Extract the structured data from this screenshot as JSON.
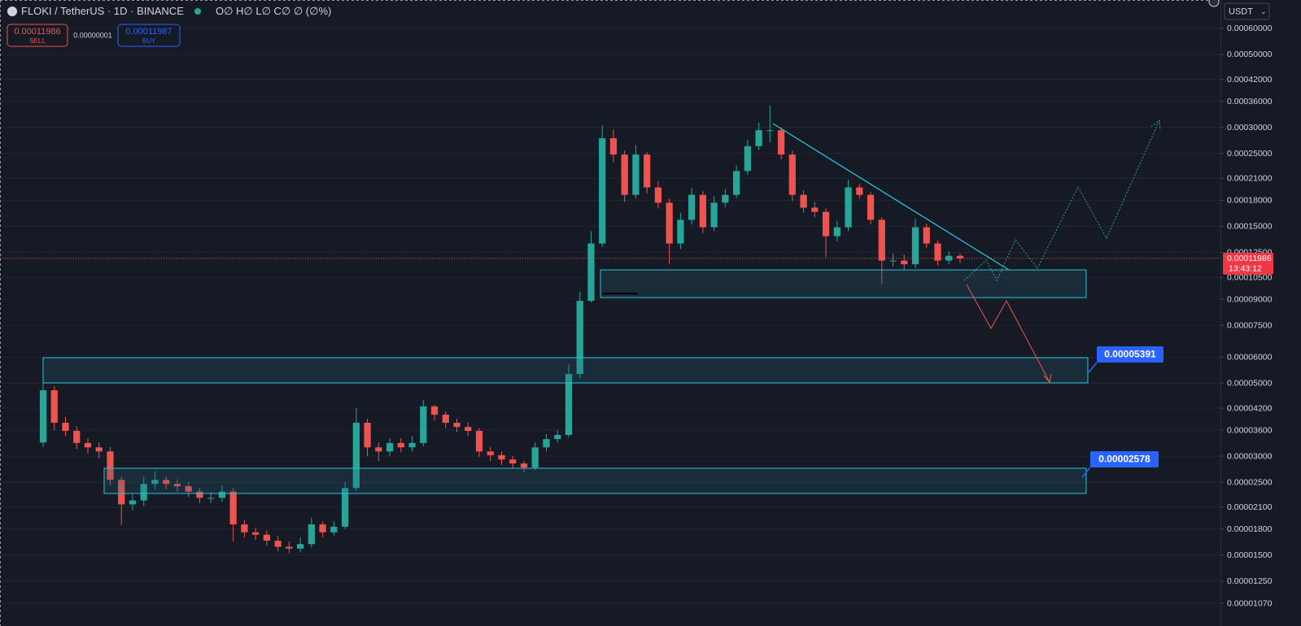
{
  "header": {
    "symbol": "FLOKI / TetherUS · 1D · BINANCE",
    "ohlc": "O∅ H∅ L∅ C∅ ∅ (∅%)",
    "sell_price": "0.00011986",
    "sell_label": "SELL",
    "spread": "0.00000001",
    "buy_price": "0.00011987",
    "buy_label": "BUY",
    "currency": "USDT"
  },
  "price_tag": {
    "price": "0.00011986",
    "countdown": "13:43:12"
  },
  "annotations": [
    "0.00005391",
    "0.00002578"
  ],
  "chart_data": {
    "type": "candlestick",
    "log_scale": true,
    "grid": true,
    "up_color": "#26a69a",
    "down_color": "#ef5350",
    "ylim": [
      9.13e-06,
      0.000732
    ],
    "yticks": [
      {
        "value": 0.0006,
        "label": "0.00060000"
      },
      {
        "value": 0.0005,
        "label": "0.00050000"
      },
      {
        "value": 0.00042,
        "label": "0.00042000"
      },
      {
        "value": 0.00036,
        "label": "0.00036000"
      },
      {
        "value": 0.0003,
        "label": "0.00030000"
      },
      {
        "value": 0.00025,
        "label": "0.00025000"
      },
      {
        "value": 0.00021,
        "label": "0.00021000"
      },
      {
        "value": 0.00018,
        "label": "0.00018000"
      },
      {
        "value": 0.00015,
        "label": "0.00015000"
      },
      {
        "value": 0.000125,
        "label": "0.00012500"
      },
      {
        "value": 0.000105,
        "label": "0.00010500"
      },
      {
        "value": 9e-05,
        "label": "0.00009000"
      },
      {
        "value": 7.5e-05,
        "label": "0.00007500"
      },
      {
        "value": 6e-05,
        "label": "0.00006000"
      },
      {
        "value": 5e-05,
        "label": "0.00005000"
      },
      {
        "value": 4.2e-05,
        "label": "0.00004200"
      },
      {
        "value": 3.6e-05,
        "label": "0.00003600"
      },
      {
        "value": 3e-05,
        "label": "0.00003000"
      },
      {
        "value": 2.5e-05,
        "label": "0.00002500"
      },
      {
        "value": 2.1e-05,
        "label": "0.00002100"
      },
      {
        "value": 1.8e-05,
        "label": "0.00001800"
      },
      {
        "value": 1.5e-05,
        "label": "0.00001500"
      },
      {
        "value": 1.25e-05,
        "label": "0.00001250"
      },
      {
        "value": 1.07e-05,
        "label": "0.00001070"
      }
    ],
    "open": [
      3.3e-05,
      4.76e-05,
      3.79e-05,
      3.58e-05,
      3.29e-05,
      3.19e-05,
      3.1e-05,
      2.54e-05,
      2.14e-05,
      2.2e-05,
      2.47e-05,
      2.54e-05,
      2.47e-05,
      2.43e-05,
      2.34e-05,
      2.24e-05,
      2.24e-05,
      2.34e-05,
      1.86e-05,
      1.76e-05,
      1.73e-05,
      1.66e-05,
      1.59e-05,
      1.57e-05,
      1.62e-05,
      1.86e-05,
      1.76e-05,
      1.83e-05,
      2.4e-05,
      3.79e-05,
      3.19e-05,
      3.1e-05,
      3.29e-05,
      3.19e-05,
      3.29e-05,
      4.25e-05,
      4.01e-05,
      3.79e-05,
      3.68e-05,
      3.58e-05,
      3.1e-05,
      3.02e-05,
      2.93e-05,
      2.85e-05,
      2.77e-05,
      3.19e-05,
      3.38e-05,
      3.48e-05,
      5.33e-05,
      8.9e-05,
      0.000133,
      0.000278,
      0.000248,
      0.000187,
      0.000248,
      0.000197,
      0.000177,
      0.000133,
      0.000157,
      0.000187,
      0.000149,
      0.000177,
      0.000187,
      0.000221,
      0.000263,
      0.000294,
      0.000294,
      0.000248,
      0.000187,
      0.000171,
      0.000166,
      0.00014,
      0.000149,
      0.000197,
      0.000187,
      0.000157,
      0.000118,
      0.000118,
      0.000115,
      0.000149,
      0.000133,
      0.000118,
      0.000122
    ],
    "high": [
      5e-05,
      4.9e-05,
      3.95e-05,
      3.7e-05,
      3.4e-05,
      3.3e-05,
      3.2e-05,
      2.6e-05,
      2.3e-05,
      2.6e-05,
      2.7e-05,
      2.6e-05,
      2.55e-05,
      2.5e-05,
      2.4e-05,
      2.33e-05,
      2.45e-05,
      2.4e-05,
      1.92e-05,
      1.82e-05,
      1.78e-05,
      1.72e-05,
      1.65e-05,
      1.7e-05,
      1.95e-05,
      1.9e-05,
      1.9e-05,
      2.5e-05,
      4.2e-05,
      3.9e-05,
      3.3e-05,
      3.4e-05,
      3.4e-05,
      3.45e-05,
      4.45e-05,
      4.3e-05,
      4.1e-05,
      3.9e-05,
      3.8e-05,
      3.65e-05,
      3.2e-05,
      3.1e-05,
      3e-05,
      2.9e-05,
      3.3e-05,
      3.5e-05,
      3.6e-05,
      5.7e-05,
      9.5e-05,
      0.000145,
      0.000305,
      0.000295,
      0.000255,
      0.000265,
      0.000252,
      0.000206,
      0.000182,
      0.000165,
      0.000196,
      0.000192,
      0.000185,
      0.000195,
      0.00023,
      0.000275,
      0.00031,
      0.00035,
      0.0003,
      0.000255,
      0.000193,
      0.000178,
      0.00017,
      0.000156,
      0.000208,
      0.000202,
      0.000191,
      0.00016,
      0.000124,
      0.000123,
      0.000158,
      0.000153,
      0.000136,
      0.000126,
      0.000124
    ],
    "low": [
      3.2e-05,
      3.6e-05,
      3.45e-05,
      3.15e-05,
      3.05e-05,
      2.95e-05,
      2.45e-05,
      1.85e-05,
      2.05e-05,
      2.12e-05,
      2.38e-05,
      2.38e-05,
      2.34e-05,
      2.25e-05,
      2.16e-05,
      2.16e-05,
      2.18e-05,
      1.65e-05,
      1.7e-05,
      1.67e-05,
      1.6e-05,
      1.54e-05,
      1.52e-05,
      1.53e-05,
      1.58e-05,
      1.7e-05,
      1.72e-05,
      1.8e-05,
      2.35e-05,
      3e-05,
      2.9e-05,
      3e-05,
      3.08e-05,
      3.1e-05,
      3.22e-05,
      3.85e-05,
      3.65e-05,
      3.55e-05,
      3.45e-05,
      2.98e-05,
      2.9e-05,
      2.82e-05,
      2.75e-05,
      2.68e-05,
      2.72e-05,
      3.1e-05,
      3.3e-05,
      3.42e-05,
      5.2e-05,
      8.8e-05,
      0.00013,
      0.000235,
      0.000178,
      0.000182,
      0.000189,
      0.00017,
      0.000115,
      0.000128,
      0.000152,
      0.000143,
      0.000145,
      0.000172,
      0.000183,
      0.000215,
      0.000256,
      0.00027,
      0.00024,
      0.000179,
      0.000165,
      0.00016,
      0.000121,
      0.000135,
      0.000145,
      0.000182,
      0.000152,
      0.0001,
      0.000113,
      0.000111,
      0.000112,
      0.000129,
      0.000114,
      0.000115,
      0.000116
    ],
    "close": [
      4.76e-05,
      3.79e-05,
      3.58e-05,
      3.29e-05,
      3.19e-05,
      3.1e-05,
      2.54e-05,
      2.14e-05,
      2.2e-05,
      2.47e-05,
      2.54e-05,
      2.47e-05,
      2.43e-05,
      2.34e-05,
      2.24e-05,
      2.24e-05,
      2.34e-05,
      1.86e-05,
      1.76e-05,
      1.73e-05,
      1.66e-05,
      1.59e-05,
      1.57e-05,
      1.62e-05,
      1.86e-05,
      1.76e-05,
      1.83e-05,
      2.4e-05,
      3.79e-05,
      3.19e-05,
      3.1e-05,
      3.29e-05,
      3.19e-05,
      3.29e-05,
      4.25e-05,
      4.01e-05,
      3.79e-05,
      3.68e-05,
      3.58e-05,
      3.1e-05,
      3.02e-05,
      2.93e-05,
      2.85e-05,
      2.77e-05,
      3.19e-05,
      3.38e-05,
      3.48e-05,
      5.33e-05,
      8.9e-05,
      0.000133,
      0.000278,
      0.000248,
      0.000187,
      0.000248,
      0.000197,
      0.000177,
      0.000133,
      0.000157,
      0.000187,
      0.000149,
      0.000177,
      0.000187,
      0.000221,
      0.000263,
      0.000294,
      0.000294,
      0.000248,
      0.000187,
      0.000171,
      0.000166,
      0.00014,
      0.000149,
      0.000197,
      0.000187,
      0.000157,
      0.000118,
      0.000118,
      0.000115,
      0.000149,
      0.000133,
      0.000118,
      0.000122,
      0.00011986
    ]
  }
}
